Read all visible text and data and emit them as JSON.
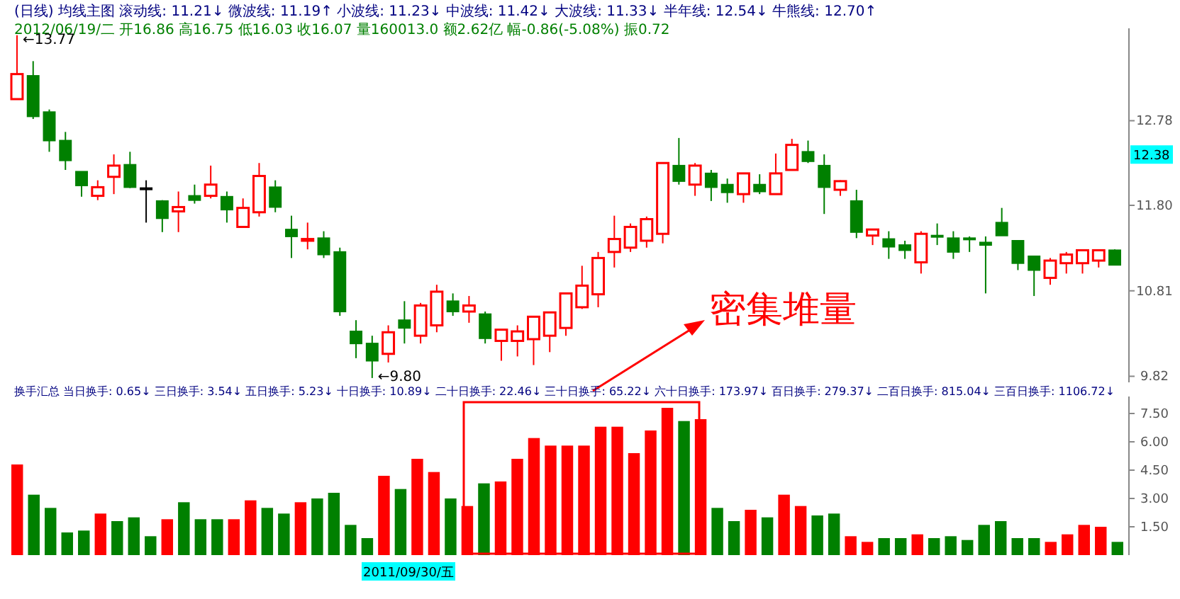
{
  "chart_data": [
    {
      "type": "candlestick",
      "title": "(日线) 均线主图 滚动线: 11.21↓ 微波线: 11.19↑ 小波线: 11.23↓ 中波线: 11.42↓ 大波线: 11.33↓ 半年线: 12.54↓ 牛熊线: 12.70↑",
      "subtitle": "2012/06/19/二 开16.86 高16.75 低16.03 收16.07 量160013.0 额2.62亿 幅-0.86(-5.08%) 振0.72",
      "categories": [
        null,
        null,
        null,
        null,
        null,
        null,
        null,
        null,
        null,
        null,
        null,
        null,
        null,
        null,
        null,
        null,
        null,
        null,
        null,
        null,
        null,
        null,
        null,
        null,
        null,
        null,
        null,
        null,
        null,
        null,
        null,
        null,
        null,
        null,
        null,
        null,
        null,
        null,
        null,
        null,
        null,
        null,
        null,
        null,
        null,
        null,
        null,
        null,
        null,
        null,
        null,
        null,
        null,
        null,
        null,
        null,
        null,
        null,
        null,
        null,
        null,
        null,
        null,
        null,
        null,
        null,
        null,
        null,
        null
      ],
      "ohlc": [
        [
          13.03,
          13.77,
          13.03,
          13.32
        ],
        [
          13.3,
          13.47,
          12.8,
          12.83
        ],
        [
          12.88,
          12.91,
          12.42,
          12.55
        ],
        [
          12.55,
          12.65,
          12.21,
          12.32
        ],
        [
          12.19,
          12.19,
          11.9,
          12.03
        ],
        [
          11.91,
          12.09,
          11.86,
          12.01
        ],
        [
          12.13,
          12.39,
          11.93,
          12.26
        ],
        [
          12.27,
          12.42,
          12.0,
          12.01
        ],
        [
          12.0,
          12.09,
          11.6,
          12.0
        ],
        [
          11.85,
          11.86,
          11.49,
          11.65
        ],
        [
          11.73,
          11.96,
          11.49,
          11.78
        ],
        [
          11.91,
          12.04,
          11.82,
          11.86
        ],
        [
          11.91,
          12.26,
          11.88,
          12.04
        ],
        [
          11.9,
          11.96,
          11.6,
          11.75
        ],
        [
          11.55,
          11.88,
          11.55,
          11.77
        ],
        [
          11.72,
          12.29,
          11.67,
          12.14
        ],
        [
          12.01,
          12.09,
          11.72,
          11.78
        ],
        [
          11.52,
          11.68,
          11.19,
          11.44
        ],
        [
          11.39,
          11.6,
          11.29,
          11.41
        ],
        [
          11.42,
          11.5,
          11.19,
          11.23
        ],
        [
          11.26,
          11.31,
          10.52,
          10.57
        ],
        [
          10.34,
          10.47,
          10.03,
          10.2
        ],
        [
          10.2,
          10.29,
          9.8,
          10.0
        ],
        [
          10.08,
          10.41,
          9.98,
          10.33
        ],
        [
          10.47,
          10.69,
          10.2,
          10.38
        ],
        [
          10.29,
          10.67,
          10.2,
          10.64
        ],
        [
          10.41,
          10.88,
          10.33,
          10.8
        ],
        [
          10.69,
          10.78,
          10.52,
          10.57
        ],
        [
          10.57,
          10.75,
          10.44,
          10.64
        ],
        [
          10.54,
          10.57,
          10.2,
          10.26
        ],
        [
          10.23,
          10.36,
          10.0,
          10.36
        ],
        [
          10.23,
          10.41,
          10.05,
          10.34
        ],
        [
          10.25,
          10.51,
          9.95,
          10.51
        ],
        [
          10.29,
          10.56,
          10.1,
          10.56
        ],
        [
          10.38,
          10.78,
          10.29,
          10.78
        ],
        [
          10.62,
          11.1,
          10.6,
          10.87
        ],
        [
          10.77,
          11.26,
          10.62,
          11.19
        ],
        [
          11.26,
          11.68,
          11.08,
          11.41
        ],
        [
          11.31,
          11.59,
          11.26,
          11.55
        ],
        [
          11.39,
          11.67,
          11.31,
          11.64
        ],
        [
          11.47,
          12.29,
          11.36,
          12.29
        ],
        [
          12.26,
          12.58,
          12.04,
          12.08
        ],
        [
          12.04,
          12.29,
          11.91,
          12.26
        ],
        [
          12.17,
          12.21,
          11.85,
          12.01
        ],
        [
          12.04,
          12.11,
          11.83,
          11.95
        ],
        [
          11.93,
          12.17,
          11.83,
          12.17
        ],
        [
          12.04,
          12.16,
          11.93,
          11.96
        ],
        [
          11.93,
          12.4,
          11.93,
          12.17
        ],
        [
          12.21,
          12.57,
          12.21,
          12.5
        ],
        [
          12.42,
          12.55,
          12.29,
          12.31
        ],
        [
          12.26,
          12.39,
          11.7,
          12.01
        ],
        [
          11.98,
          12.09,
          11.91,
          12.08
        ],
        [
          11.85,
          11.98,
          11.42,
          11.49
        ],
        [
          11.45,
          11.52,
          11.34,
          11.52
        ],
        [
          11.41,
          11.5,
          11.18,
          11.32
        ],
        [
          11.34,
          11.39,
          11.18,
          11.28
        ],
        [
          11.14,
          11.5,
          11.01,
          11.47
        ],
        [
          11.45,
          11.59,
          11.34,
          11.44
        ],
        [
          11.42,
          11.5,
          11.18,
          11.26
        ],
        [
          11.42,
          11.44,
          11.26,
          11.41
        ],
        [
          11.37,
          11.44,
          10.78,
          11.34
        ],
        [
          11.6,
          11.77,
          11.45,
          11.45
        ],
        [
          11.39,
          11.39,
          11.05,
          11.13
        ],
        [
          11.21,
          11.21,
          10.75,
          11.05
        ],
        [
          10.96,
          11.19,
          10.88,
          11.16
        ],
        [
          11.13,
          11.26,
          11.01,
          11.23
        ],
        [
          11.13,
          11.28,
          11.01,
          11.28
        ],
        [
          11.16,
          11.28,
          11.08,
          11.28
        ],
        [
          11.28,
          11.29,
          11.11,
          11.11
        ]
      ],
      "colors": [
        "#ff0000",
        "#008000",
        "#008000",
        "#008000",
        "#008000",
        "#ff0000",
        "#ff0000",
        "#008000",
        "#000000",
        "#008000",
        "#ff0000",
        "#008000",
        "#ff0000",
        "#008000",
        "#ff0000",
        "#ff0000",
        "#008000",
        "#008000",
        "#ff0000",
        "#008000",
        "#008000",
        "#008000",
        "#008000",
        "#ff0000",
        "#008000",
        "#ff0000",
        "#ff0000",
        "#008000",
        "#ff0000",
        "#008000",
        "#ff0000",
        "#ff0000",
        "#ff0000",
        "#ff0000",
        "#ff0000",
        "#ff0000",
        "#ff0000",
        "#ff0000",
        "#ff0000",
        "#ff0000",
        "#ff0000",
        "#008000",
        "#ff0000",
        "#008000",
        "#008000",
        "#ff0000",
        "#008000",
        "#ff0000",
        "#ff0000",
        "#008000",
        "#008000",
        "#ff0000",
        "#008000",
        "#ff0000",
        "#008000",
        "#008000",
        "#ff0000",
        "#008000",
        "#008000",
        "#008000",
        "#008000",
        "#008000",
        "#008000",
        "#008000",
        "#ff0000",
        "#ff0000",
        "#ff0000",
        "#ff0000",
        "#008000"
      ],
      "ylim": [
        9.75,
        13.85
      ],
      "yticks": [
        9.82,
        10.81,
        {
          "value": 11.8,
          "label": "11.80"
        },
        12.78
      ],
      "grid": false,
      "annotations": [
        "←13.77",
        "←9.80",
        "密集堆量",
        "12.38"
      ]
    },
    {
      "type": "bar",
      "title": "换手汇总 当日换手: 0.65↓ 三日换手: 3.54↓ 五日换手: 5.23↓ 十日换手: 10.89↓ 二十日换手: 22.46↓ 三十日换手: 65.22↓ 六十日换手: 173.97↓ 百日换手: 279.37↓ 二百日换手: 815.04↓ 三百日换手: 1106.72↓",
      "categories": [
        null,
        null,
        null,
        null,
        null,
        null,
        null,
        null,
        null,
        null,
        null,
        null,
        null,
        null,
        null,
        null,
        null,
        null,
        null,
        null,
        null,
        null,
        null,
        null,
        null,
        null,
        null,
        null,
        null,
        null,
        null,
        null,
        null,
        null,
        null,
        null,
        null,
        null,
        null,
        null,
        null,
        null,
        null,
        null,
        null,
        null,
        null,
        null,
        null,
        null,
        null,
        null,
        null,
        null,
        null,
        null,
        null,
        null,
        null,
        null,
        null,
        null,
        null,
        null,
        null,
        null,
        null
      ],
      "values": [
        4.8,
        3.2,
        2.5,
        1.2,
        1.3,
        2.2,
        1.8,
        2.0,
        1.0,
        1.9,
        2.8,
        1.9,
        1.9,
        1.9,
        2.9,
        2.5,
        2.2,
        2.8,
        3.0,
        3.3,
        1.6,
        0.9,
        4.2,
        3.5,
        5.1,
        4.4,
        3.0,
        2.6,
        3.8,
        3.9,
        5.1,
        6.2,
        5.8,
        5.8,
        5.8,
        6.8,
        6.8,
        5.4,
        6.6,
        7.8,
        7.1,
        7.2,
        2.5,
        1.8,
        2.4,
        2.0,
        3.2,
        2.6,
        2.1,
        2.2,
        1.0,
        0.7,
        0.9,
        0.9,
        1.1,
        0.9,
        1.0,
        0.8,
        1.6,
        1.8,
        0.9,
        0.9,
        0.7,
        1.1,
        1.6,
        1.5,
        0.7
      ],
      "colors": [
        "#ff0000",
        "#008000",
        "#008000",
        "#008000",
        "#008000",
        "#ff0000",
        "#008000",
        "#008000",
        "#008000",
        "#ff0000",
        "#008000",
        "#008000",
        "#008000",
        "#ff0000",
        "#ff0000",
        "#008000",
        "#008000",
        "#ff0000",
        "#008000",
        "#008000",
        "#008000",
        "#008000",
        "#ff0000",
        "#008000",
        "#ff0000",
        "#ff0000",
        "#008000",
        "#ff0000",
        "#008000",
        "#ff0000",
        "#ff0000",
        "#ff0000",
        "#ff0000",
        "#ff0000",
        "#ff0000",
        "#ff0000",
        "#ff0000",
        "#ff0000",
        "#ff0000",
        "#ff0000",
        "#008000",
        "#ff0000",
        "#008000",
        "#008000",
        "#ff0000",
        "#008000",
        "#ff0000",
        "#ff0000",
        "#008000",
        "#008000",
        "#ff0000",
        "#ff0000",
        "#008000",
        "#008000",
        "#ff0000",
        "#008000",
        "#008000",
        "#008000",
        "#008000",
        "#008000",
        "#008000",
        "#008000",
        "#ff0000",
        "#ff0000",
        "#ff0000",
        "#ff0000",
        "#008000"
      ],
      "ylim": [
        0,
        8.4
      ],
      "yticks": [
        {
          "value": 1.5,
          "label": "1.50"
        },
        {
          "value": 3,
          "label": "3.00"
        },
        {
          "value": 4.5,
          "label": "4.50"
        },
        {
          "value": 6,
          "label": "6.00"
        },
        {
          "value": 7.5,
          "label": "7.50"
        }
      ],
      "grid": false,
      "annotations": [
        "2011/09/30/五"
      ]
    }
  ]
}
